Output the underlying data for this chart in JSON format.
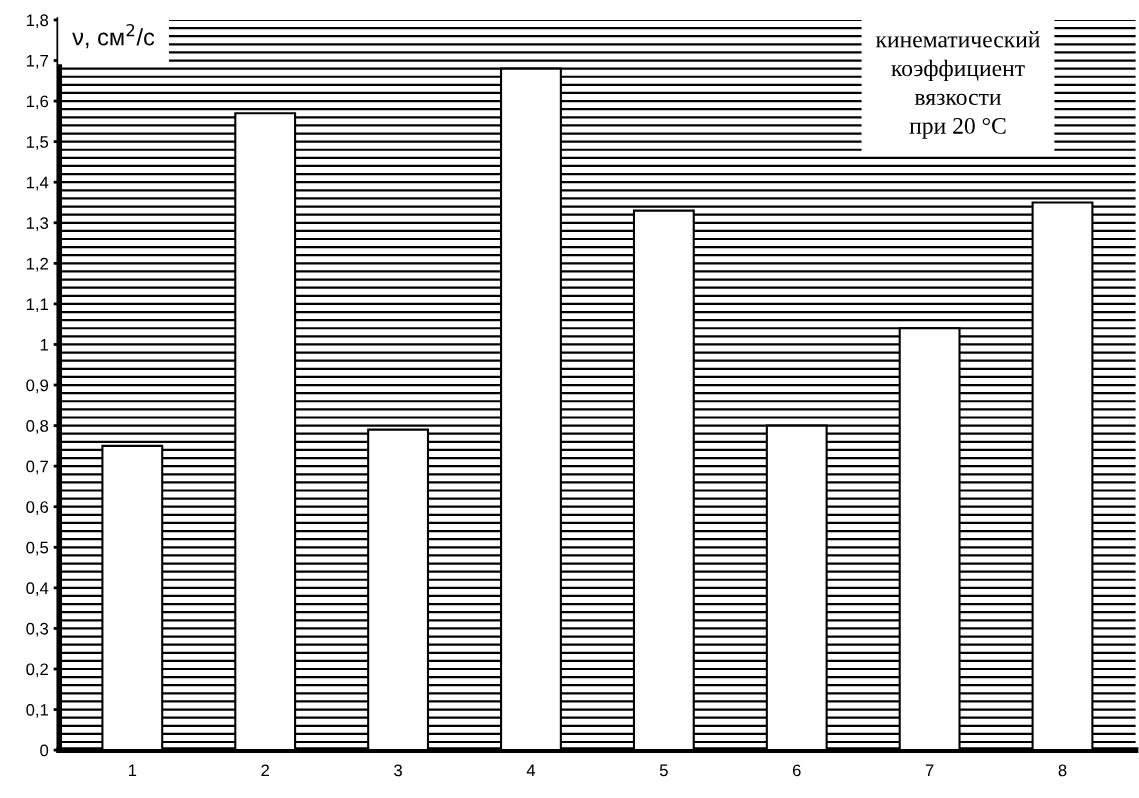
{
  "chart_data": {
    "type": "bar",
    "ylabel": "ν, см$^{2}$/с",
    "annotations": [
      "кинематический\nкоэффициент\nвязкости\nпри 20 °С"
    ],
    "categories": [
      "1",
      "2",
      "3",
      "4",
      "5",
      "6",
      "7",
      "8"
    ],
    "values": [
      0.75,
      1.57,
      0.79,
      1.68,
      1.33,
      0.8,
      1.04,
      1.35
    ],
    "color": "#ffffff",
    "ylim": [
      0,
      1.8
    ],
    "yticks": [
      0,
      {
        "value": 0.1,
        "label": "0,1"
      },
      {
        "value": 0.2,
        "label": "0,2"
      },
      {
        "value": 0.3,
        "label": "0,3"
      },
      {
        "value": 0.4,
        "label": "0,4"
      },
      {
        "value": 0.5,
        "label": "0,5"
      },
      {
        "value": 0.6,
        "label": "0,6"
      },
      {
        "value": 0.7,
        "label": "0,7"
      },
      {
        "value": 0.8,
        "label": "0,8"
      },
      {
        "value": 0.9,
        "label": "0,9"
      },
      1,
      {
        "value": 1.1,
        "label": "1,1"
      },
      {
        "value": 1.2,
        "label": "1,2"
      },
      {
        "value": 1.3,
        "label": "1,3"
      },
      {
        "value": 1.4,
        "label": "1,4"
      },
      {
        "value": 1.5,
        "label": "1,5"
      },
      {
        "value": 1.6,
        "label": "1,6"
      },
      {
        "value": 1.7,
        "label": "1,7"
      },
      {
        "value": 1.8,
        "label": "1,8"
      }
    ],
    "grid": "y"
  }
}
